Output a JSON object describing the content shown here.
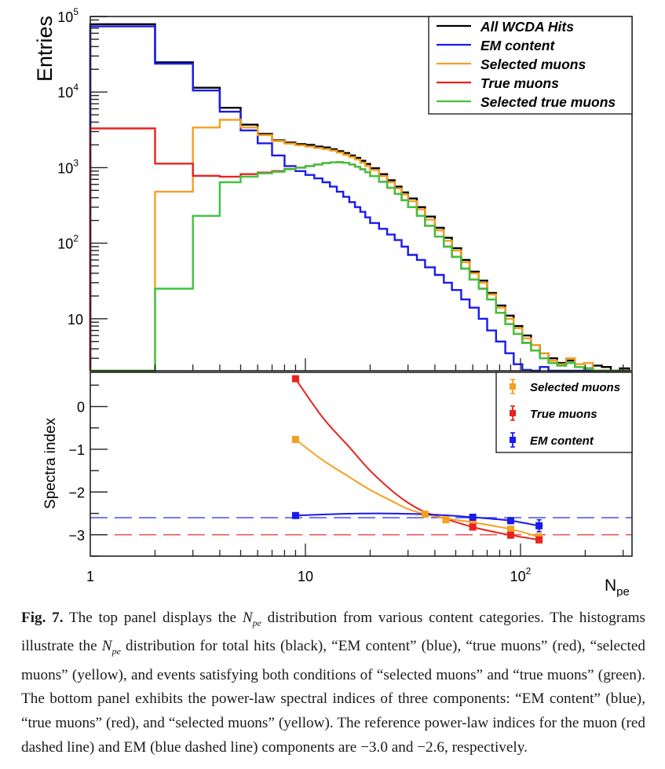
{
  "figure": {
    "label": "Fig. 7.",
    "caption_segments": [
      {
        "t": "The top panel displays the "
      },
      {
        "sym": "N",
        "sub": "pe"
      },
      {
        "t": " distribution from various content categories. The histograms illustrate the "
      },
      {
        "sym": "N",
        "sub": "pe"
      },
      {
        "t": " distribution for total hits (black), “EM content” (blue), “true muons” (red), “selected muons” (yellow), and events satisfying both conditions of “selected muons” and “true muons” (green). The bottom panel exhibits the power-law spectral indices of three components: “EM content” (blue), “true muons” (red), and “selected muons” (yellow). The reference power-law indices for the muon (red dashed line) and EM (blue dashed line) components are −3.0 and −2.6, respectively."
      }
    ]
  },
  "colors": {
    "all": "#000000",
    "em": "#1a1aee",
    "selected": "#f5a020",
    "true": "#e8231f",
    "seltrue": "#3ec43e"
  },
  "chart_data": [
    {
      "type": "line",
      "subtype": "step-histogram",
      "panel": "top",
      "title": "",
      "xlabel": "N_pe",
      "ylabel": "Entries",
      "xscale": "log",
      "yscale": "log",
      "xlim": [
        1,
        330
      ],
      "ylim": [
        2.05,
        100000
      ],
      "y_tick_labels": [
        "10",
        "10^2",
        "10^3",
        "10^4",
        "10^5"
      ],
      "y_ticks": [
        10,
        100,
        1000,
        10000,
        100000
      ],
      "legend": {
        "placement": "top-right",
        "entries": [
          "All WCDA Hits",
          "EM content",
          "Selected muons",
          "True muons",
          "Selected true muons"
        ]
      },
      "bin_edges": [
        1,
        2,
        3,
        4,
        5,
        6,
        7,
        8,
        9,
        10,
        11,
        12,
        13,
        14,
        15,
        16,
        17,
        18,
        19,
        20,
        22,
        24,
        26,
        28,
        30,
        33,
        36,
        40,
        44,
        48,
        53,
        58,
        64,
        70,
        77,
        85,
        93,
        102,
        112,
        123,
        135,
        148,
        163,
        179,
        197,
        217,
        239,
        263,
        290,
        320
      ],
      "series": [
        {
          "name": "All WCDA Hits",
          "key": "all",
          "values": [
            79000,
            24800,
            11400,
            6200,
            3700,
            2800,
            2300,
            2150,
            2050,
            2000,
            1900,
            1850,
            1750,
            1650,
            1560,
            1450,
            1350,
            1230,
            1120,
            980,
            820,
            680,
            560,
            470,
            390,
            300,
            225,
            160,
            118,
            86,
            60,
            42,
            32,
            22,
            15,
            11,
            8,
            6,
            4.5,
            3.5,
            3,
            2.6,
            2.8,
            2.3,
            2.2,
            2.4,
            2.3,
            0,
            2.2
          ]
        },
        {
          "name": "EM content",
          "key": "em",
          "values": [
            74000,
            23800,
            10500,
            5500,
            3100,
            2100,
            1450,
            1050,
            900,
            800,
            720,
            640,
            560,
            480,
            410,
            350,
            300,
            260,
            220,
            185,
            155,
            130,
            110,
            90,
            70,
            60,
            48,
            38,
            30,
            24,
            18,
            14,
            10,
            7,
            5,
            3.5,
            2.5,
            2.1,
            0,
            2.3,
            0,
            0,
            0,
            0,
            0,
            0,
            0,
            0,
            0
          ]
        },
        {
          "name": "Selected muons",
          "key": "selected",
          "values": [
            0,
            480,
            3400,
            4300,
            3400,
            2700,
            2250,
            2080,
            1980,
            1900,
            1820,
            1760,
            1680,
            1580,
            1480,
            1380,
            1280,
            1160,
            1050,
            930,
            770,
            640,
            530,
            440,
            360,
            280,
            205,
            148,
            108,
            80,
            56,
            40,
            30,
            21,
            14,
            10,
            7.5,
            5.5,
            4.5,
            3.5,
            2.8,
            2.5,
            3,
            2.5,
            2.6,
            0,
            0,
            0,
            0
          ]
        },
        {
          "name": "True muons",
          "key": "true",
          "values": [
            3300,
            1130,
            780,
            760,
            820,
            860,
            900,
            960,
            1000,
            1050,
            1100,
            1150,
            1170,
            1180,
            1160,
            1100,
            1030,
            950,
            870,
            770,
            650,
            540,
            450,
            370,
            300,
            230,
            170,
            122,
            90,
            66,
            46,
            33,
            25,
            18,
            12,
            8.5,
            6.3,
            4.8,
            3.8,
            3,
            2.6,
            2.4,
            2.6,
            2.3,
            2.2,
            0,
            0,
            0,
            0
          ]
        },
        {
          "name": "Selected true muons",
          "key": "seltrue",
          "values": [
            0,
            25,
            230,
            640,
            760,
            840,
            880,
            950,
            1000,
            1050,
            1100,
            1150,
            1170,
            1180,
            1160,
            1100,
            1030,
            950,
            870,
            770,
            650,
            540,
            450,
            370,
            300,
            230,
            170,
            122,
            90,
            66,
            46,
            33,
            25,
            18,
            12,
            8.5,
            6.3,
            4.8,
            3.8,
            3,
            2.6,
            2.4,
            2.6,
            2.3,
            2.2,
            0,
            0,
            0,
            0
          ]
        }
      ]
    },
    {
      "type": "scatter",
      "panel": "bottom",
      "title": "",
      "xlabel": "N_pe",
      "ylabel": "Spectra index",
      "xscale": "log",
      "xlim": [
        1,
        330
      ],
      "ylim": [
        -3.5,
        0.8
      ],
      "x_tick_labels": [
        "1",
        "10",
        "10^2"
      ],
      "x_ticks": [
        1,
        10,
        100
      ],
      "y_tick_labels": [
        "−3",
        "−2",
        "−1",
        "0"
      ],
      "y_ticks": [
        -3,
        -2,
        -1,
        0
      ],
      "legend": {
        "placement": "top-right",
        "entries": [
          "Selected muons",
          "True muons",
          "EM content"
        ]
      },
      "reference_lines": [
        {
          "name": "EM reference",
          "key": "em",
          "y": -2.6,
          "style": "dashed"
        },
        {
          "name": "Muon reference",
          "key": "true",
          "y": -3.0,
          "style": "dashed"
        }
      ],
      "series": [
        {
          "name": "Selected muons",
          "key": "selected",
          "x": [
            9,
            36,
            45,
            60,
            90,
            122
          ],
          "y": [
            -0.77,
            -2.52,
            -2.65,
            -2.71,
            -2.87,
            -3.05
          ],
          "err": [
            0.02,
            0.02,
            0.03,
            0.03,
            0.04,
            0.06
          ]
        },
        {
          "name": "True muons",
          "key": "true",
          "x": [
            9,
            60,
            90,
            122
          ],
          "y": [
            0.65,
            -2.82,
            -3.01,
            -3.12
          ],
          "err": [
            0.02,
            0.03,
            0.04,
            0.05
          ]
        },
        {
          "name": "EM content",
          "key": "em",
          "x": [
            9,
            60,
            90,
            122
          ],
          "y": [
            -2.55,
            -2.59,
            -2.67,
            -2.79
          ],
          "err": [
            0.02,
            0.04,
            0.07,
            0.14
          ]
        }
      ],
      "fit_curves": [
        {
          "key": "true",
          "x": [
            9,
            12,
            16,
            20,
            25,
            30,
            36,
            45,
            60,
            75,
            90,
            122
          ],
          "y": [
            0.65,
            -0.25,
            -0.95,
            -1.5,
            -1.95,
            -2.25,
            -2.47,
            -2.63,
            -2.82,
            -2.93,
            -3.01,
            -3.12
          ]
        },
        {
          "key": "selected",
          "x": [
            9,
            12,
            16,
            20,
            25,
            30,
            36,
            45,
            60,
            90,
            122
          ],
          "y": [
            -0.77,
            -1.25,
            -1.65,
            -1.95,
            -2.2,
            -2.4,
            -2.52,
            -2.62,
            -2.71,
            -2.87,
            -3.05
          ]
        },
        {
          "key": "em",
          "x": [
            9,
            15,
            22,
            30,
            40,
            50,
            60,
            75,
            90,
            122
          ],
          "y": [
            -2.55,
            -2.51,
            -2.5,
            -2.51,
            -2.53,
            -2.56,
            -2.59,
            -2.63,
            -2.67,
            -2.79
          ]
        }
      ]
    }
  ]
}
